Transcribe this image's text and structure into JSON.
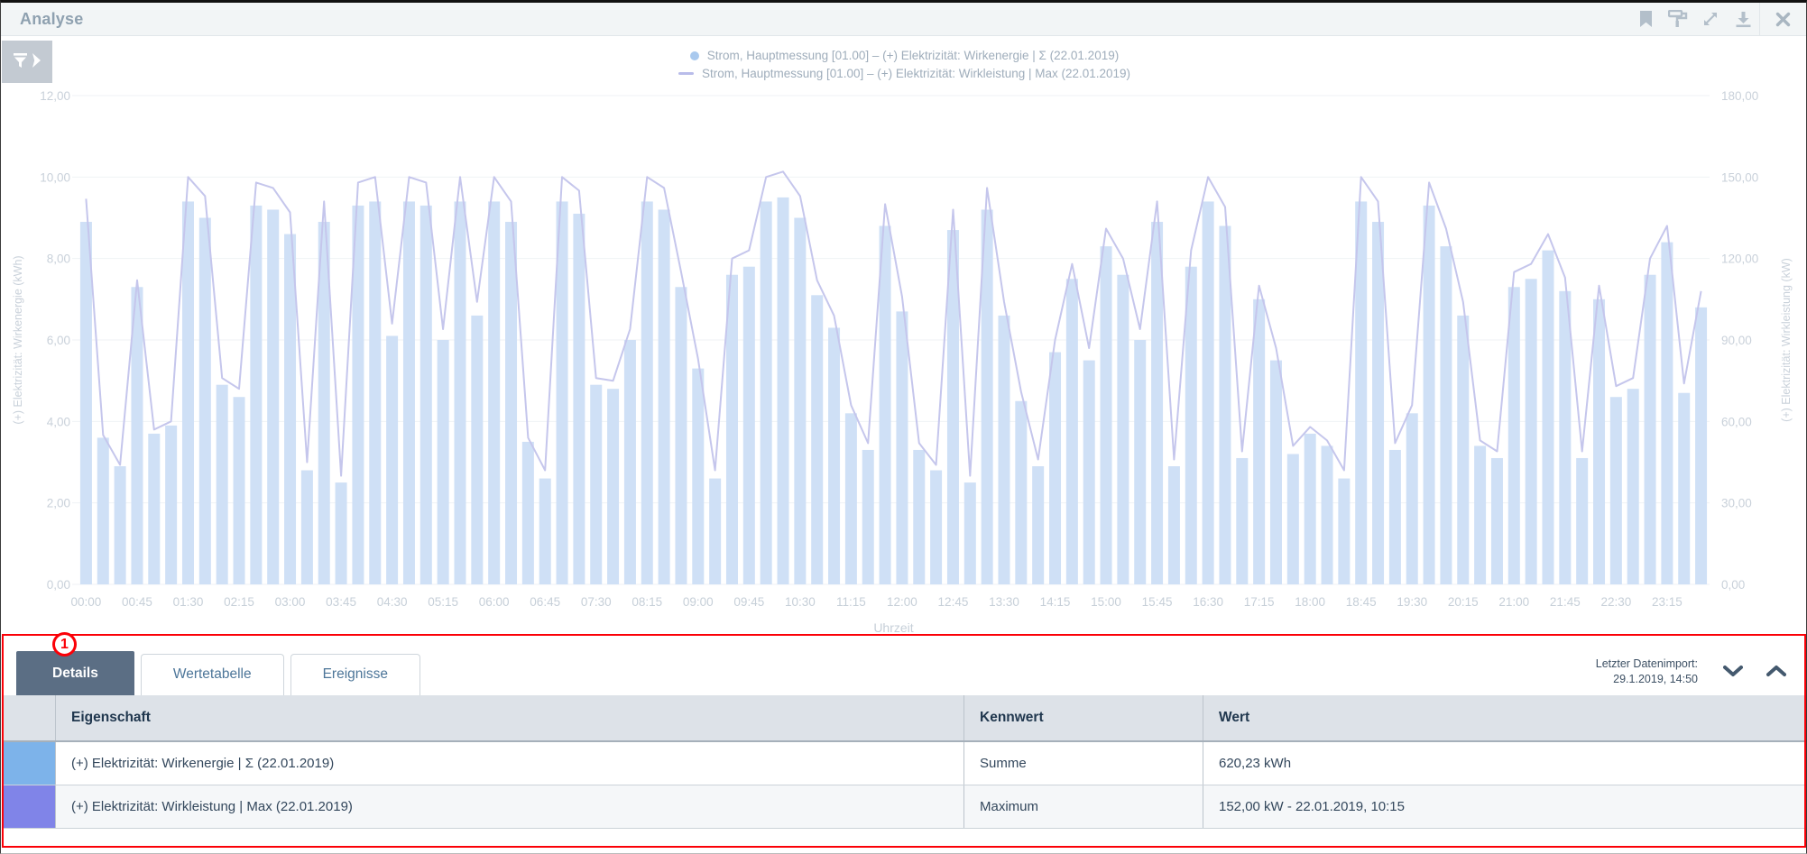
{
  "window": {
    "title": "Analyse"
  },
  "toolbar": {
    "icons": [
      "bookmark-icon",
      "paint-roller-icon",
      "expand-icon",
      "download-icon",
      "close-icon"
    ]
  },
  "filter_button": {
    "icons": [
      "funnel-icon",
      "chevron-right-icon"
    ]
  },
  "chart_data": {
    "type": "bar",
    "title": "",
    "x_axis_label": "Uhrzeit",
    "x_tick_labels": [
      "00:00",
      "00:45",
      "01:30",
      "02:15",
      "03:00",
      "03:45",
      "04:30",
      "05:15",
      "06:00",
      "06:45",
      "07:30",
      "08:15",
      "09:00",
      "09:45",
      "10:30",
      "11:15",
      "12:00",
      "12:45",
      "13:30",
      "14:15",
      "15:00",
      "15:45",
      "16:30",
      "17:15",
      "18:00",
      "18:45",
      "19:30",
      "20:15",
      "21:00",
      "21:45",
      "22:30",
      "23:15"
    ],
    "categories": [
      "00:00",
      "00:15",
      "00:30",
      "00:45",
      "01:00",
      "01:15",
      "01:30",
      "01:45",
      "02:00",
      "02:15",
      "02:30",
      "02:45",
      "03:00",
      "03:15",
      "03:30",
      "03:45",
      "04:00",
      "04:15",
      "04:30",
      "04:45",
      "05:00",
      "05:15",
      "05:30",
      "05:45",
      "06:00",
      "06:15",
      "06:30",
      "06:45",
      "07:00",
      "07:15",
      "07:30",
      "07:45",
      "08:00",
      "08:15",
      "08:30",
      "08:45",
      "09:00",
      "09:15",
      "09:30",
      "09:45",
      "10:00",
      "10:15",
      "10:30",
      "10:45",
      "11:00",
      "11:15",
      "11:30",
      "11:45",
      "12:00",
      "12:15",
      "12:30",
      "12:45",
      "13:00",
      "13:15",
      "13:30",
      "13:45",
      "14:00",
      "14:15",
      "14:30",
      "14:45",
      "15:00",
      "15:15",
      "15:30",
      "15:45",
      "16:00",
      "16:15",
      "16:30",
      "16:45",
      "17:00",
      "17:15",
      "17:30",
      "17:45",
      "18:00",
      "18:15",
      "18:30",
      "18:45",
      "19:00",
      "19:15",
      "19:30",
      "19:45",
      "20:00",
      "20:15",
      "20:30",
      "20:45",
      "21:00",
      "21:15",
      "21:30",
      "21:45",
      "22:00",
      "22:15",
      "22:30",
      "22:45",
      "23:00",
      "23:15",
      "23:30",
      "23:45"
    ],
    "series": [
      {
        "name": "Strom, Hauptmessung [01.00] – (+) Elektrizität: Wirkenergie | Σ (22.01.2019)",
        "type": "bar",
        "axis": "left",
        "unit": "kWh",
        "color": "#cfe0f6",
        "marker_color": "#a9c9ee",
        "values": [
          8.9,
          3.6,
          2.9,
          7.3,
          3.7,
          3.9,
          9.4,
          9.0,
          4.9,
          4.6,
          9.3,
          9.2,
          8.6,
          2.8,
          8.9,
          2.5,
          9.3,
          9.4,
          6.1,
          9.4,
          9.3,
          6.0,
          9.4,
          6.6,
          9.4,
          8.9,
          3.5,
          2.6,
          9.4,
          9.1,
          4.9,
          4.8,
          6.0,
          9.4,
          9.2,
          7.3,
          5.3,
          2.6,
          7.6,
          7.8,
          9.4,
          9.5,
          9.0,
          7.1,
          6.3,
          4.2,
          3.3,
          8.8,
          6.7,
          3.3,
          2.8,
          8.7,
          2.5,
          9.2,
          6.6,
          4.5,
          2.9,
          5.7,
          7.5,
          5.5,
          8.3,
          7.6,
          6.0,
          8.9,
          2.9,
          7.8,
          9.4,
          8.8,
          3.1,
          7.0,
          5.5,
          3.2,
          3.7,
          3.4,
          2.6,
          9.4,
          8.9,
          3.3,
          4.2,
          9.3,
          8.3,
          6.6,
          3.4,
          3.1,
          7.3,
          7.5,
          8.2,
          7.2,
          3.1,
          7.0,
          4.6,
          4.8,
          7.6,
          8.4,
          4.7,
          6.8
        ]
      },
      {
        "name": "Strom, Hauptmessung [01.00] – (+) Elektrizität: Wirkleistung | Max (22.01.2019)",
        "type": "line",
        "axis": "right",
        "unit": "kW",
        "color": "#c5c6ec",
        "marker_color": "#b9bcea",
        "values": [
          142,
          55,
          44,
          112,
          57,
          60,
          150,
          143,
          76,
          72,
          148,
          146,
          137,
          45,
          141,
          40,
          148,
          150,
          96,
          150,
          148,
          94,
          150,
          104,
          150,
          141,
          54,
          42,
          150,
          145,
          76,
          75,
          94,
          150,
          146,
          115,
          83,
          42,
          120,
          123,
          150,
          152,
          143,
          112,
          99,
          66,
          52,
          140,
          106,
          52,
          44,
          138,
          40,
          146,
          104,
          71,
          46,
          90,
          118,
          87,
          131,
          120,
          94,
          141,
          46,
          123,
          150,
          139,
          49,
          110,
          87,
          51,
          58,
          53,
          42,
          150,
          141,
          52,
          66,
          148,
          131,
          104,
          53,
          49,
          115,
          118,
          129,
          113,
          49,
          110,
          73,
          76,
          120,
          132,
          74,
          108
        ]
      }
    ],
    "left_axis": {
      "title": "(+) Elektrizität: Wirkenergie (kWh)",
      "min": 0,
      "max": 12,
      "tick_values": [
        0,
        2,
        4,
        6,
        8,
        10,
        12
      ],
      "tick_labels": [
        "0,00",
        "2,00",
        "4,00",
        "6,00",
        "8,00",
        "10,00",
        "12,00"
      ]
    },
    "right_axis": {
      "title": "(+) Elektrizität: Wirkleistung (kW)",
      "min": 0,
      "max": 180,
      "tick_values": [
        0,
        30,
        60,
        90,
        120,
        150,
        180
      ],
      "tick_labels": [
        "0,00",
        "30,00",
        "60,00",
        "90,00",
        "120,00",
        "150,00",
        "180,00"
      ]
    },
    "grid": true,
    "legend_position": "top-center"
  },
  "panel": {
    "tabs": [
      {
        "label": "Details",
        "active": true
      },
      {
        "label": "Wertetabelle",
        "active": false
      },
      {
        "label": "Ereignisse",
        "active": false
      }
    ],
    "last_import": {
      "label": "Letzter Datenimport:",
      "value": "29.1.2019, 14:50"
    },
    "table": {
      "columns": [
        "Eigenschaft",
        "Kennwert",
        "Wert"
      ],
      "rows": [
        {
          "color": "#7db3ea",
          "eigenschaft": "(+) Elektrizität: Wirkenergie | Σ (22.01.2019)",
          "kennwert": "Summe",
          "wert": "620,23 kWh"
        },
        {
          "color": "#8084e8",
          "eigenschaft": "(+) Elektrizität: Wirkleistung | Max (22.01.2019)",
          "kennwert": "Maximum",
          "wert": "152,00 kW - 22.01.2019, 10:15"
        }
      ]
    }
  },
  "annotation": {
    "label": "1",
    "color": "#fb0007"
  }
}
